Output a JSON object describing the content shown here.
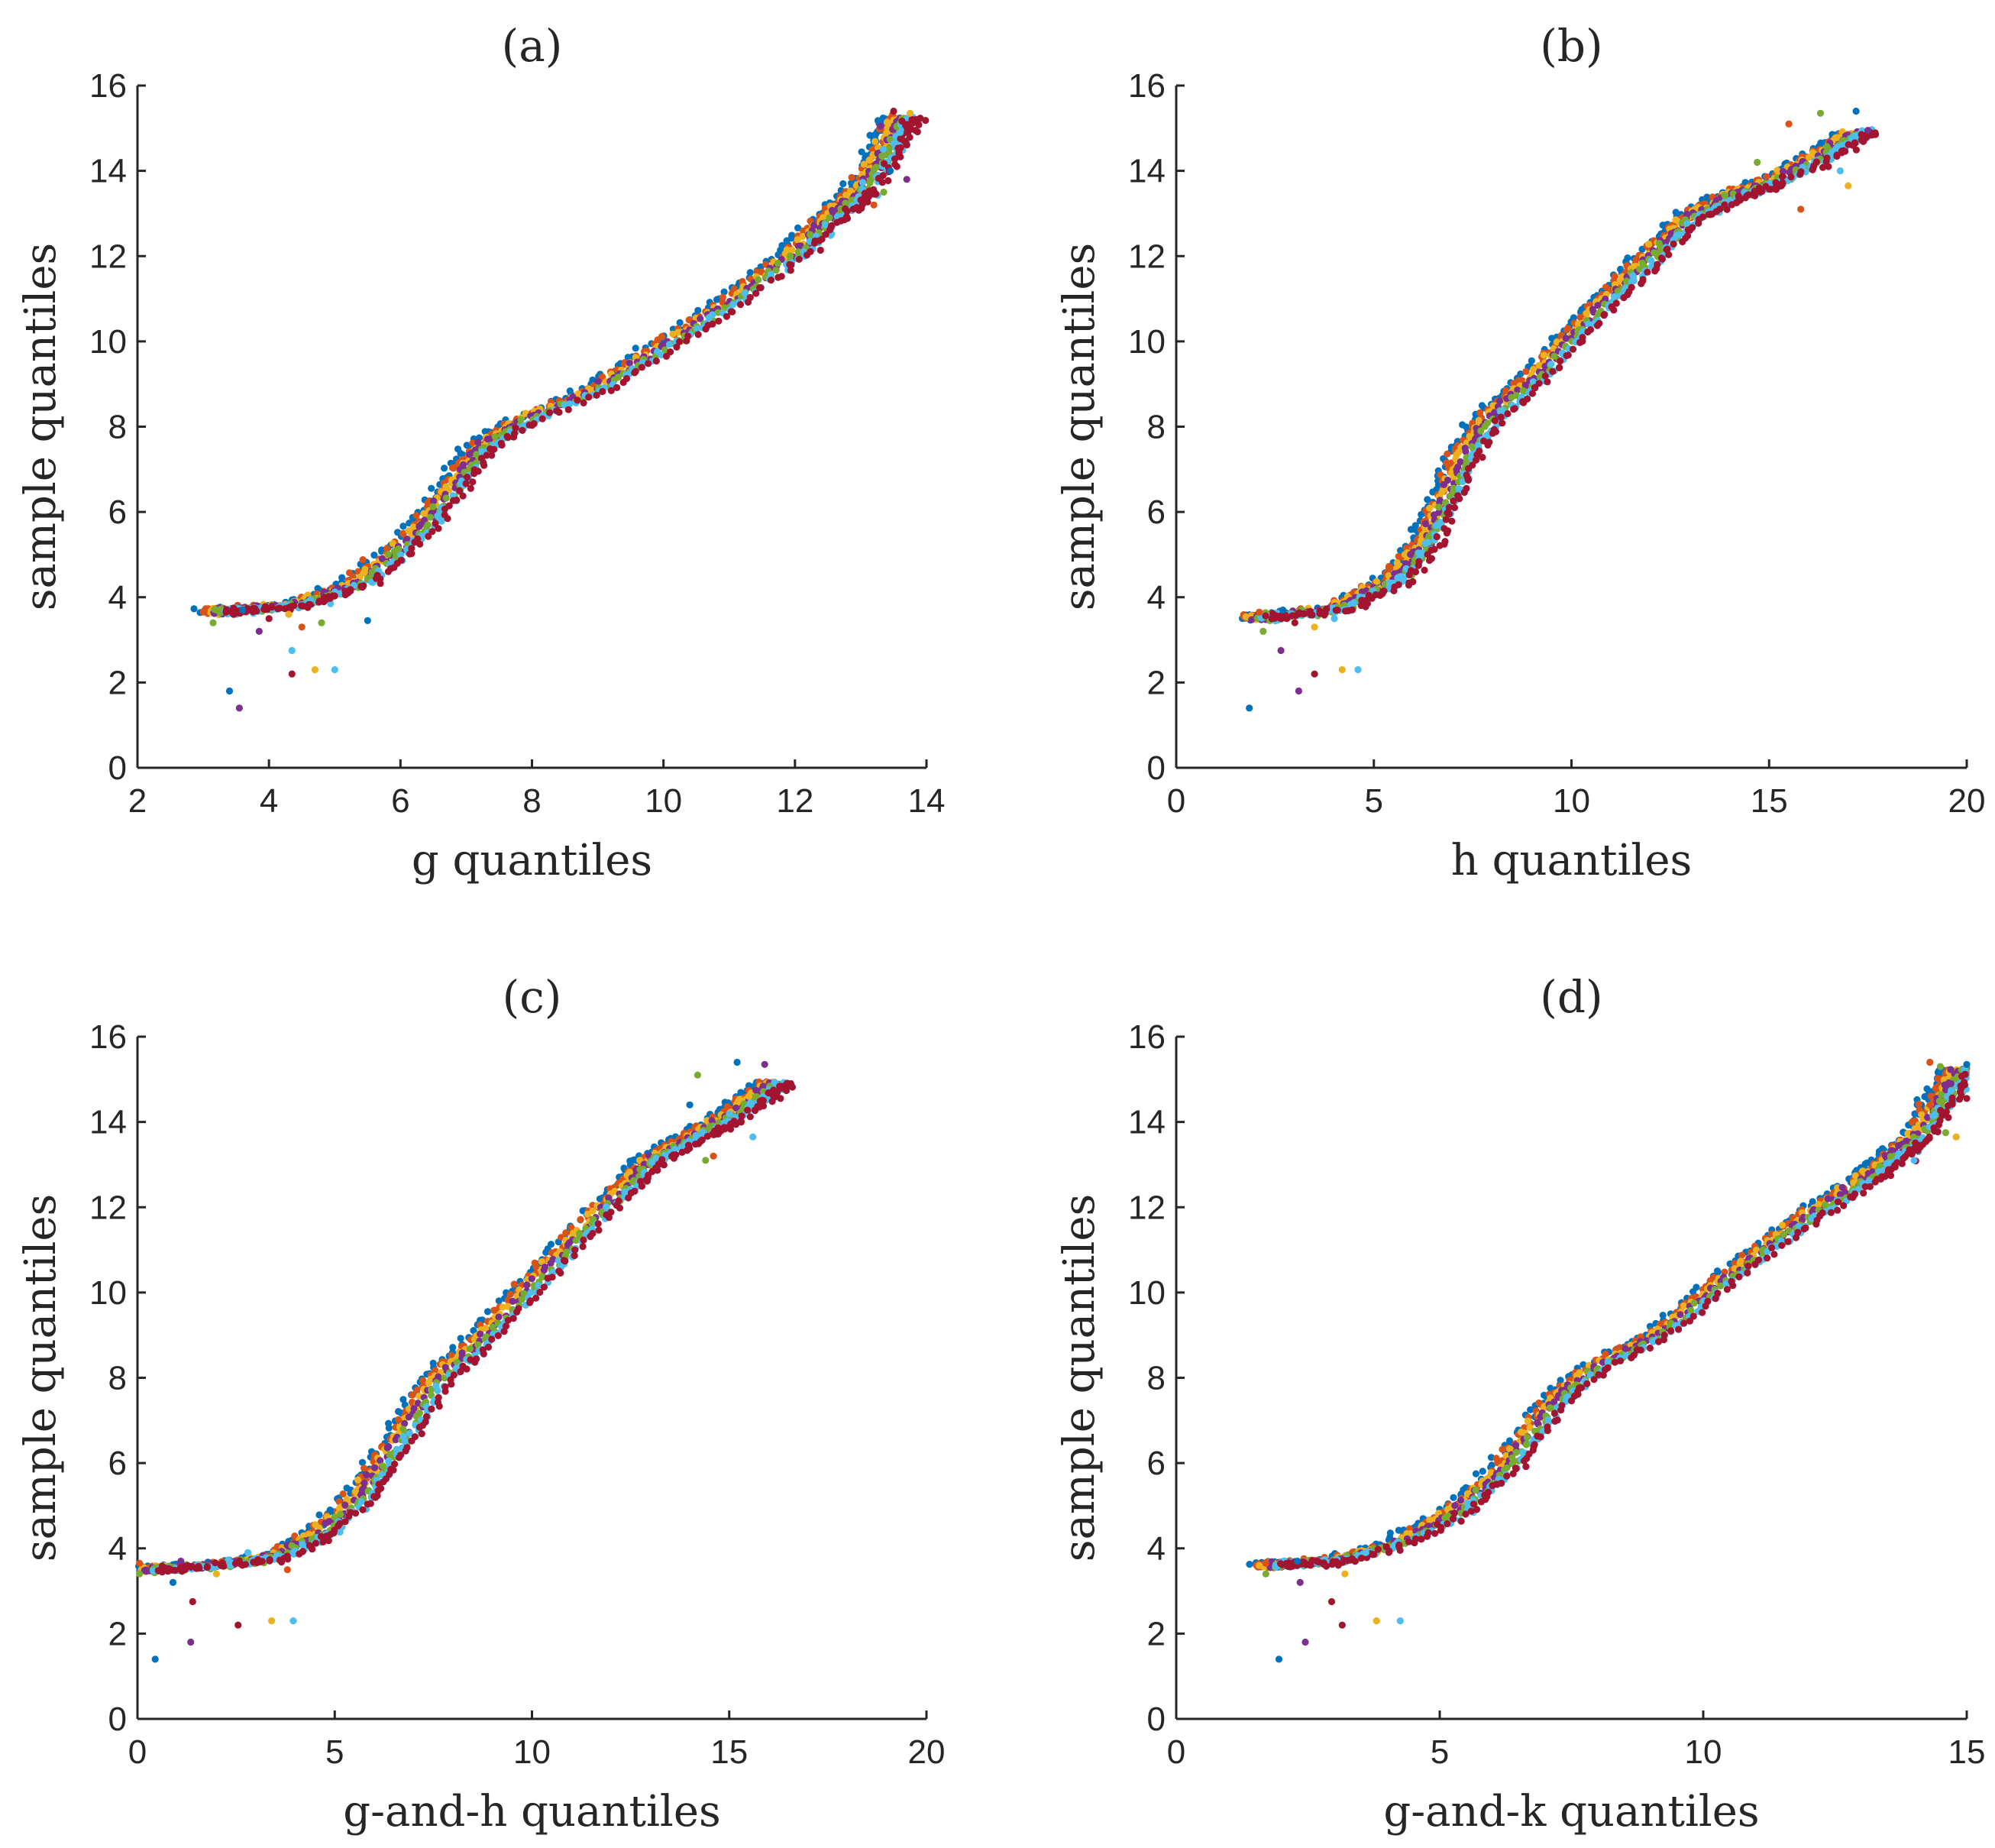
{
  "chart_data": [
    {
      "type": "scatter",
      "title": "(a)",
      "xlabel": "g quantiles",
      "ylabel": "sample quantiles",
      "xlim": [
        2,
        14
      ],
      "ylim": [
        0,
        16
      ],
      "xticks": [
        2,
        4,
        6,
        8,
        10,
        12,
        14
      ],
      "yticks": [
        0,
        2,
        4,
        6,
        8,
        10,
        12,
        14,
        16
      ],
      "grid": false,
      "series_colors": [
        "#0072BD",
        "#D95319",
        "#EDB120",
        "#7E2F8E",
        "#77AC30",
        "#4DBEEE",
        "#A2142F"
      ],
      "curve": [
        [
          3.1,
          3.65
        ],
        [
          4.4,
          3.8
        ],
        [
          5.3,
          4.3
        ],
        [
          6.2,
          5.4
        ],
        [
          6.8,
          6.6
        ],
        [
          7.2,
          7.5
        ],
        [
          7.8,
          8.1
        ],
        [
          9.0,
          8.9
        ],
        [
          10.0,
          9.9
        ],
        [
          11.0,
          10.9
        ],
        [
          12.0,
          12.1
        ],
        [
          12.6,
          13.0
        ],
        [
          13.0,
          13.5
        ],
        [
          13.7,
          15.4
        ]
      ],
      "outliers": [
        [
          3.4,
          1.8
        ],
        [
          3.55,
          1.4
        ],
        [
          4.35,
          2.2
        ],
        [
          4.7,
          2.3
        ],
        [
          5.0,
          2.3
        ],
        [
          3.0,
          3.65
        ],
        [
          3.15,
          3.4
        ],
        [
          3.6,
          3.7
        ],
        [
          3.85,
          3.2
        ],
        [
          4.0,
          3.5
        ],
        [
          4.3,
          3.6
        ],
        [
          4.35,
          2.75
        ],
        [
          4.5,
          3.3
        ],
        [
          4.8,
          3.4
        ],
        [
          5.5,
          3.45
        ],
        [
          13.3,
          15.05
        ],
        [
          13.5,
          15.4
        ],
        [
          13.75,
          15.35
        ],
        [
          13.6,
          14.9
        ],
        [
          13.2,
          13.2
        ],
        [
          13.35,
          13.5
        ],
        [
          13.45,
          14.0
        ],
        [
          13.7,
          13.8
        ],
        [
          13.55,
          14.1
        ]
      ]
    },
    {
      "type": "scatter",
      "title": "(b)",
      "xlabel": "h quantiles",
      "ylabel": "sample quantiles",
      "xlim": [
        0,
        20
      ],
      "ylim": [
        0,
        16
      ],
      "xticks": [
        0,
        5,
        10,
        15,
        20
      ],
      "yticks": [
        0,
        2,
        4,
        6,
        8,
        10,
        12,
        14,
        16
      ],
      "grid": false,
      "series_colors": [
        "#0072BD",
        "#D95319",
        "#EDB120",
        "#7E2F8E",
        "#77AC30",
        "#4DBEEE",
        "#A2142F"
      ],
      "curve": [
        [
          1.9,
          3.5
        ],
        [
          4.0,
          3.7
        ],
        [
          5.5,
          4.4
        ],
        [
          6.3,
          5.3
        ],
        [
          6.8,
          6.3
        ],
        [
          7.3,
          7.4
        ],
        [
          8.0,
          8.3
        ],
        [
          9.0,
          9.1
        ],
        [
          10.0,
          10.1
        ],
        [
          11.0,
          11.1
        ],
        [
          12.0,
          12.0
        ],
        [
          13.0,
          12.9
        ],
        [
          14.0,
          13.4
        ],
        [
          15.0,
          13.7
        ],
        [
          17.5,
          15.0
        ]
      ],
      "outliers": [
        [
          1.85,
          1.4
        ],
        [
          3.1,
          1.8
        ],
        [
          3.5,
          2.2
        ],
        [
          4.2,
          2.3
        ],
        [
          4.6,
          2.3
        ],
        [
          2.1,
          3.65
        ],
        [
          2.2,
          3.2
        ],
        [
          2.7,
          3.7
        ],
        [
          2.65,
          2.75
        ],
        [
          3.0,
          3.4
        ],
        [
          3.5,
          3.3
        ],
        [
          4.0,
          3.5
        ],
        [
          15.5,
          15.1
        ],
        [
          16.3,
          15.35
        ],
        [
          17.2,
          15.4
        ],
        [
          17.5,
          14.95
        ],
        [
          16.5,
          14.1
        ],
        [
          17.0,
          13.65
        ],
        [
          16.8,
          14.0
        ],
        [
          15.8,
          13.1
        ],
        [
          14.7,
          14.2
        ]
      ]
    },
    {
      "type": "scatter",
      "title": "(c)",
      "xlabel": "g-and-h quantiles",
      "ylabel": "sample quantiles",
      "xlim": [
        0,
        20
      ],
      "ylim": [
        0,
        16
      ],
      "xticks": [
        0,
        5,
        10,
        15,
        20
      ],
      "yticks": [
        0,
        2,
        4,
        6,
        8,
        10,
        12,
        14,
        16
      ],
      "grid": false,
      "series_colors": [
        "#0072BD",
        "#D95319",
        "#EDB120",
        "#7E2F8E",
        "#77AC30",
        "#4DBEEE",
        "#A2142F"
      ],
      "curve": [
        [
          0.1,
          3.5
        ],
        [
          2.0,
          3.6
        ],
        [
          3.5,
          3.8
        ],
        [
          4.7,
          4.4
        ],
        [
          5.6,
          5.2
        ],
        [
          6.2,
          6.0
        ],
        [
          6.9,
          7.0
        ],
        [
          7.6,
          8.0
        ],
        [
          8.5,
          8.7
        ],
        [
          9.5,
          9.7
        ],
        [
          10.5,
          10.7
        ],
        [
          11.5,
          11.7
        ],
        [
          12.5,
          12.6
        ],
        [
          13.0,
          13.1
        ],
        [
          14.0,
          13.6
        ],
        [
          14.8,
          14.0
        ],
        [
          16.3,
          15.0
        ]
      ],
      "outliers": [
        [
          0.45,
          1.4
        ],
        [
          1.35,
          1.8
        ],
        [
          2.55,
          2.2
        ],
        [
          3.4,
          2.3
        ],
        [
          3.95,
          2.3
        ],
        [
          0.05,
          3.65
        ],
        [
          0.05,
          3.4
        ],
        [
          0.9,
          3.2
        ],
        [
          1.1,
          3.7
        ],
        [
          1.4,
          2.75
        ],
        [
          2.0,
          3.4
        ],
        [
          2.8,
          3.9
        ],
        [
          3.8,
          3.5
        ],
        [
          14.2,
          15.1
        ],
        [
          15.2,
          15.4
        ],
        [
          15.9,
          15.35
        ],
        [
          16.3,
          14.55
        ],
        [
          15.5,
          14.6
        ],
        [
          15.6,
          13.65
        ],
        [
          14.6,
          13.2
        ],
        [
          14.4,
          13.1
        ],
        [
          14.0,
          14.4
        ]
      ]
    },
    {
      "type": "scatter",
      "title": "(d)",
      "xlabel": "g-and-k quantiles",
      "ylabel": "sample quantiles",
      "xlim": [
        0,
        15
      ],
      "ylim": [
        0,
        16
      ],
      "xticks": [
        0,
        5,
        10,
        15
      ],
      "yticks": [
        0,
        2,
        4,
        6,
        8,
        10,
        12,
        14,
        16
      ],
      "grid": false,
      "series_colors": [
        "#0072BD",
        "#D95319",
        "#EDB120",
        "#7E2F8E",
        "#77AC30",
        "#4DBEEE",
        "#A2142F"
      ],
      "curve": [
        [
          1.7,
          3.6
        ],
        [
          3.0,
          3.7
        ],
        [
          4.2,
          4.1
        ],
        [
          5.2,
          4.8
        ],
        [
          6.0,
          5.6
        ],
        [
          6.6,
          6.5
        ],
        [
          7.2,
          7.5
        ],
        [
          7.9,
          8.2
        ],
        [
          9.0,
          8.9
        ],
        [
          10.0,
          9.9
        ],
        [
          11.0,
          10.9
        ],
        [
          12.0,
          11.8
        ],
        [
          13.0,
          12.6
        ],
        [
          13.5,
          13.1
        ],
        [
          14.0,
          13.6
        ],
        [
          15.0,
          15.4
        ]
      ],
      "outliers": [
        [
          1.95,
          1.4
        ],
        [
          2.45,
          1.8
        ],
        [
          3.15,
          2.2
        ],
        [
          3.8,
          2.3
        ],
        [
          4.25,
          2.3
        ],
        [
          1.7,
          3.65
        ],
        [
          1.7,
          3.4
        ],
        [
          2.3,
          3.7
        ],
        [
          2.35,
          3.2
        ],
        [
          2.95,
          2.75
        ],
        [
          3.2,
          3.4
        ],
        [
          3.6,
          3.9
        ],
        [
          14.3,
          15.4
        ],
        [
          14.5,
          15.3
        ],
        [
          15.0,
          15.35
        ],
        [
          14.7,
          14.9
        ],
        [
          15.0,
          14.55
        ],
        [
          14.8,
          13.65
        ],
        [
          14.0,
          13.1
        ],
        [
          14.3,
          14.4
        ],
        [
          14.6,
          13.75
        ]
      ]
    }
  ]
}
